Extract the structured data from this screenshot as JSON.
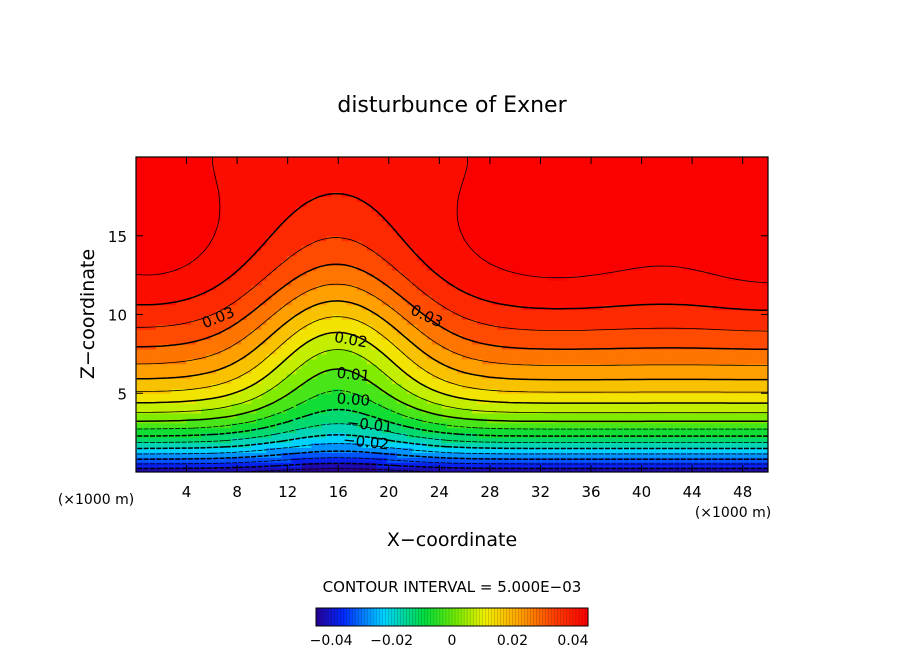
{
  "chart_data": {
    "type": "contour",
    "title": "disturbunce of Exner",
    "xlabel": "X−coordinate",
    "ylabel": "Z−coordinate",
    "x_unit": "(×1000 m)",
    "y_unit": "(×1000 m)",
    "xlim": [
      0,
      50
    ],
    "ylim": [
      0,
      20
    ],
    "x_ticks": [
      4,
      8,
      12,
      16,
      20,
      24,
      28,
      32,
      36,
      40,
      44,
      48
    ],
    "y_ticks": [
      5,
      10,
      15
    ],
    "contour_interval_label": "CONTOUR INTERVAL = 5.000E−03",
    "contour_interval": 0.005,
    "value_range": [
      -0.045,
      0.045
    ],
    "contour_labels": [
      {
        "text": "0.03",
        "x": 6.5,
        "z": 9.8,
        "angle": -22
      },
      {
        "text": "0.03",
        "x": 23.0,
        "z": 9.9,
        "angle": 25
      },
      {
        "text": "0.02",
        "x": 17.0,
        "z": 8.4,
        "angle": 10
      },
      {
        "text": "0.01",
        "x": 17.2,
        "z": 6.2,
        "angle": 6
      },
      {
        "text": "0.00",
        "x": 17.2,
        "z": 4.6,
        "angle": 4
      },
      {
        "text": "−0.01",
        "x": 18.5,
        "z": 3.0,
        "angle": 6
      },
      {
        "text": "−0.02",
        "x": 18.2,
        "z": 1.9,
        "angle": 6
      }
    ],
    "colorbar_ticks": [
      "−0.04",
      "−0.02",
      "0",
      "0.02",
      "0.04"
    ],
    "colorbar_tick_values": [
      -0.04,
      -0.02,
      0,
      0.02,
      0.04
    ]
  }
}
